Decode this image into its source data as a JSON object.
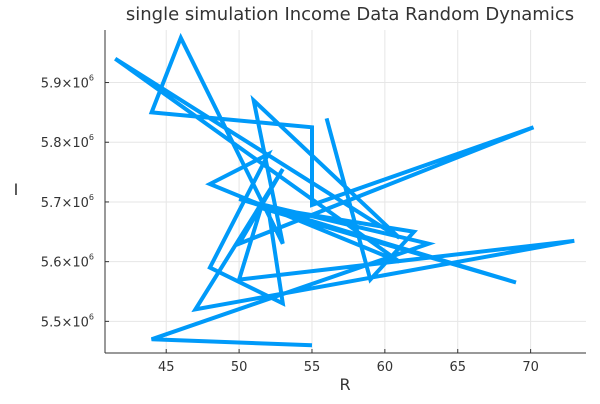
{
  "chart_data": {
    "type": "line",
    "title": "single simulation Income Data Random Dynamics",
    "xlabel": "R",
    "ylabel": "I",
    "xlim": [
      40.8,
      73.8
    ],
    "ylim": [
      5447000,
      5988000
    ],
    "x_ticks": [
      {
        "value": 45,
        "label": "45"
      },
      {
        "value": 50,
        "label": "50"
      },
      {
        "value": 55,
        "label": "55"
      },
      {
        "value": 60,
        "label": "60"
      },
      {
        "value": 65,
        "label": "65"
      },
      {
        "value": 70,
        "label": "70"
      }
    ],
    "y_ticks": [
      {
        "value": 5500000,
        "mantissa": "5.5×10",
        "exponent": "6"
      },
      {
        "value": 5600000,
        "mantissa": "5.6×10",
        "exponent": "6"
      },
      {
        "value": 5700000,
        "mantissa": "5.7×10",
        "exponent": "6"
      },
      {
        "value": 5800000,
        "mantissa": "5.8×10",
        "exponent": "6"
      },
      {
        "value": 5900000,
        "mantissa": "5.9×10",
        "exponent": "6"
      }
    ],
    "grid": true,
    "series": [
      {
        "color": "#009af9",
        "points": [
          [
            56,
            5840000
          ],
          [
            59,
            5570000
          ],
          [
            62,
            5650000
          ],
          [
            52,
            5690000
          ],
          [
            53,
            5530000
          ],
          [
            48,
            5590000
          ],
          [
            52,
            5780000
          ],
          [
            48,
            5730000
          ],
          [
            61,
            5600000
          ],
          [
            41.5,
            5940000
          ],
          [
            61,
            5640000
          ],
          [
            51,
            5870000
          ],
          [
            53,
            5630000
          ],
          [
            46,
            5975000
          ],
          [
            44,
            5850000
          ],
          [
            55,
            5825000
          ],
          [
            55,
            5695000
          ],
          [
            70.2,
            5825000
          ],
          [
            50,
            5630000
          ],
          [
            53,
            5755000
          ],
          [
            47,
            5520000
          ],
          [
            73,
            5635000
          ],
          [
            50,
            5570000
          ],
          [
            51.5,
            5690000
          ],
          [
            69,
            5565000
          ],
          [
            50,
            5705000
          ],
          [
            63,
            5630000
          ],
          [
            44,
            5470000
          ],
          [
            55,
            5460000
          ]
        ]
      }
    ]
  }
}
